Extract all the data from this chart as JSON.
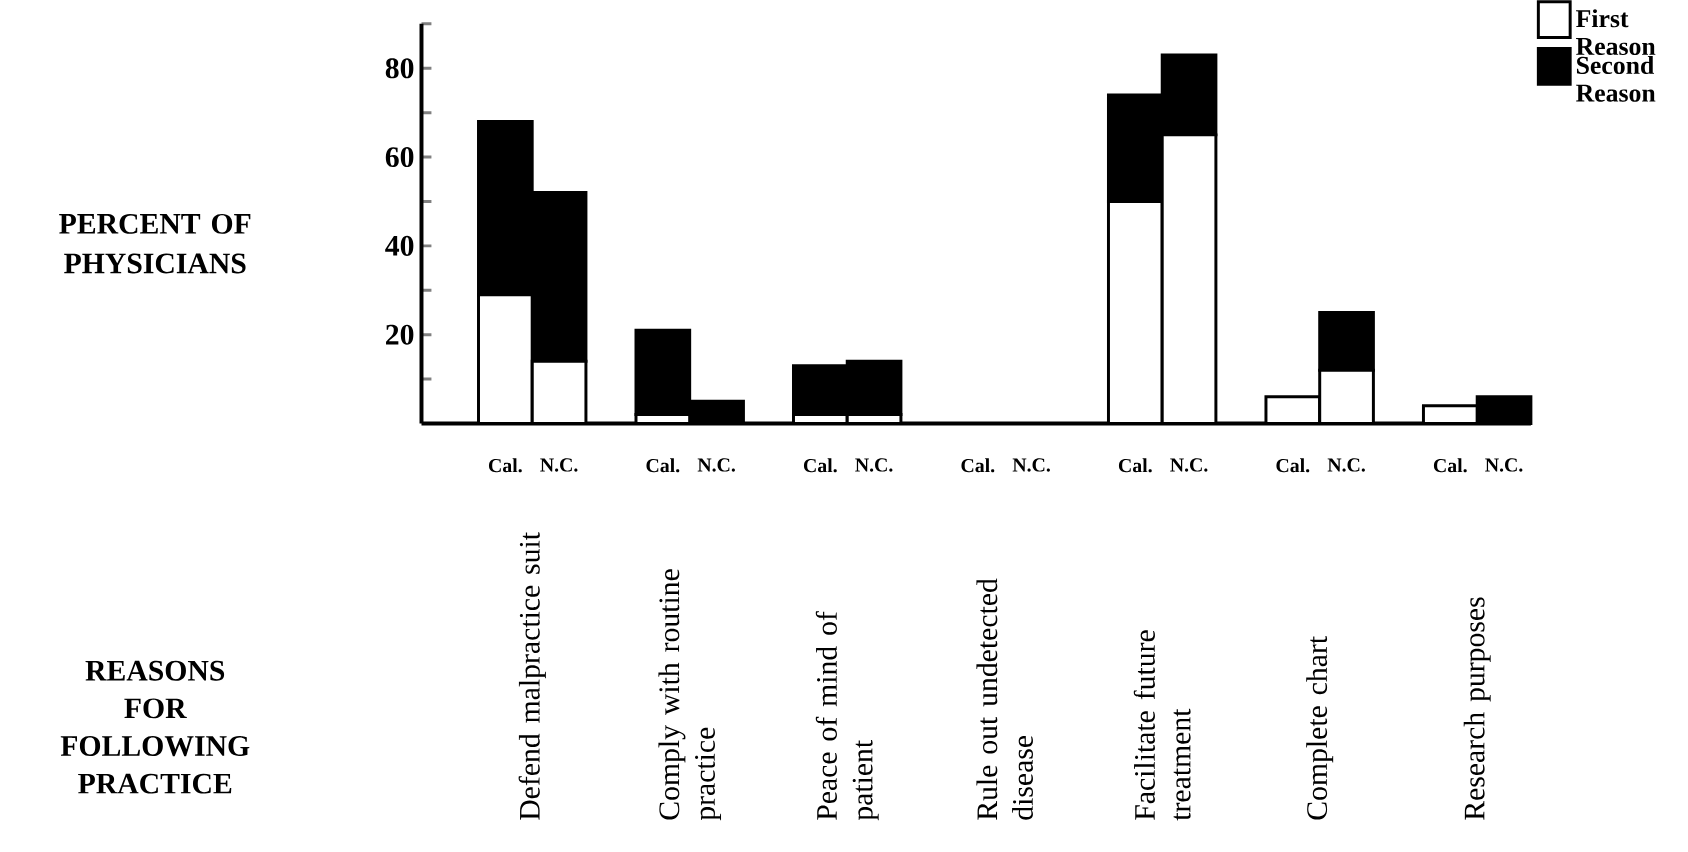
{
  "chart_data": {
    "type": "bar",
    "stacked": true,
    "ylabel": "PERCENT OF PHYSICIANS",
    "categories": [
      "Cal.",
      "N.C.",
      "Cal.",
      "N.C.",
      "Cal.",
      "N.C.",
      "Cal.",
      "N.C.",
      "Cal.",
      "N.C.",
      "Cal.",
      "N.C.",
      "Cal.",
      "N.C."
    ],
    "series": [
      {
        "name": "First Reason",
        "color": "#ffffff",
        "values": [
          29,
          14,
          2,
          0,
          2,
          2,
          0,
          0,
          50,
          65,
          6,
          12,
          4,
          0
        ]
      },
      {
        "name": "Second Reason",
        "color": "#000000",
        "values": [
          39,
          38,
          19,
          5,
          11,
          12,
          0,
          0,
          24,
          18,
          0,
          13,
          0,
          6
        ]
      }
    ],
    "ylim": [
      0,
      90
    ],
    "yticks": [
      {
        "value": 10,
        "label": null
      },
      20,
      {
        "value": 30,
        "label": null
      },
      40,
      {
        "value": 50,
        "label": null
      },
      60,
      {
        "value": 70,
        "label": null
      },
      80,
      {
        "value": 90,
        "label": null
      }
    ],
    "legend": "top right",
    "annotations": [
      "Defend malpractice suit",
      "Comply with routine practice",
      "Peace of mind of patient",
      "Rule out undetected disease",
      "Facilitate future treatment",
      "Complete chart",
      "Research purposes",
      "REASONS FOR FOLLOWING PRACTICE"
    ]
  }
}
